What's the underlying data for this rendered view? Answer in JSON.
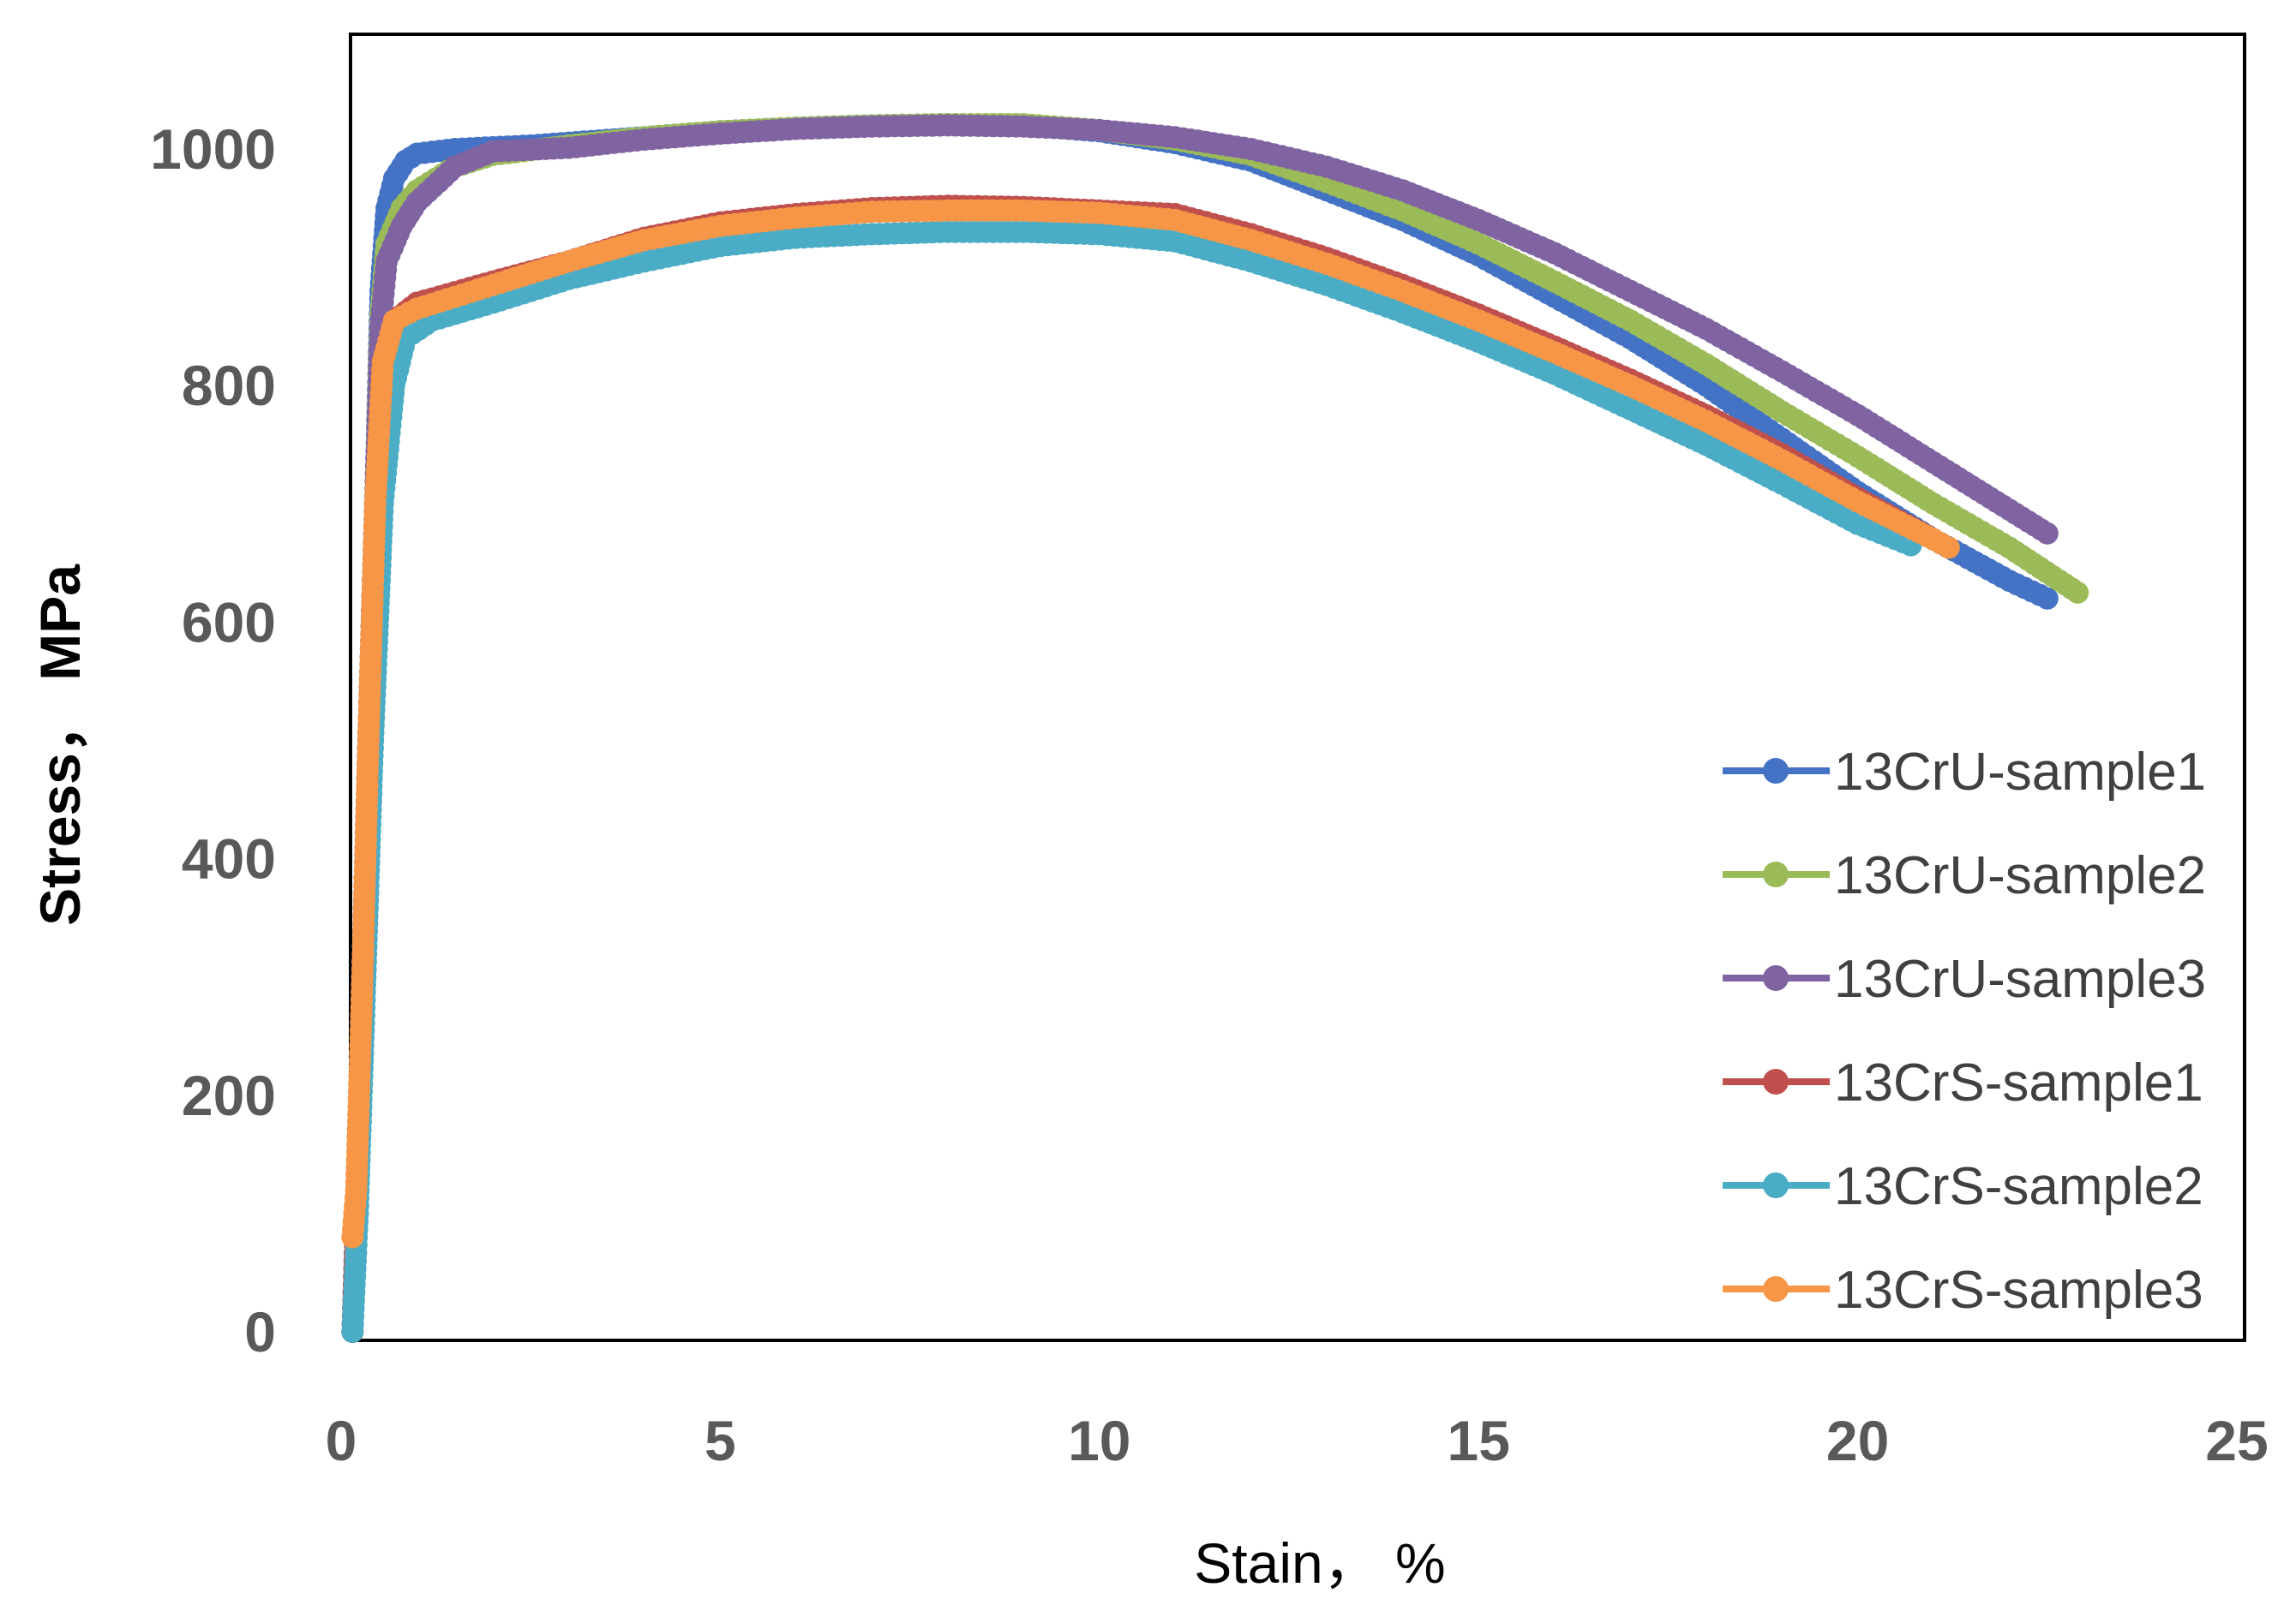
{
  "chart_data": {
    "type": "line",
    "title": "",
    "xlabel": "Stain， %",
    "ylabel": "Stress， MPa",
    "xlim": [
      0,
      25
    ],
    "ylim": [
      0,
      1100
    ],
    "xticks": [
      "0",
      "5",
      "10",
      "15",
      "20",
      "25"
    ],
    "xtick_values": [
      0,
      5,
      10,
      15,
      20,
      25
    ],
    "yticks": [
      "0",
      "200",
      "400",
      "600",
      "800",
      "1000"
    ],
    "ytick_values": [
      0,
      200,
      400,
      600,
      800,
      1000
    ],
    "grid": false,
    "legend_position": "bottom-right",
    "series": [
      {
        "name": "13CrU-sample1",
        "color": "#4472C4",
        "points": [
          [
            0.15,
            0
          ],
          [
            0.2,
            100
          ],
          [
            0.28,
            300
          ],
          [
            0.36,
            500
          ],
          [
            0.45,
            700
          ],
          [
            0.52,
            880
          ],
          [
            0.6,
            950
          ],
          [
            0.7,
            975
          ],
          [
            0.85,
            990
          ],
          [
            1.0,
            996
          ],
          [
            1.5,
            1000
          ],
          [
            2.5,
            1003
          ],
          [
            4,
            1010
          ],
          [
            5,
            1015
          ],
          [
            6,
            1018
          ],
          [
            7,
            1020
          ],
          [
            8,
            1021
          ],
          [
            9,
            1020
          ],
          [
            10,
            1015
          ],
          [
            11,
            1005
          ],
          [
            12,
            990
          ],
          [
            13,
            965
          ],
          [
            14,
            940
          ],
          [
            15,
            910
          ],
          [
            16,
            875
          ],
          [
            17,
            840
          ],
          [
            18,
            800
          ],
          [
            19,
            755
          ],
          [
            20,
            710
          ],
          [
            21,
            670
          ],
          [
            22,
            635
          ],
          [
            22.5,
            620
          ]
        ]
      },
      {
        "name": "13CrU-sample2",
        "color": "#9BBB59",
        "points": [
          [
            0.15,
            0
          ],
          [
            0.2,
            100
          ],
          [
            0.28,
            300
          ],
          [
            0.36,
            500
          ],
          [
            0.45,
            700
          ],
          [
            0.52,
            860
          ],
          [
            0.6,
            920
          ],
          [
            0.8,
            950
          ],
          [
            1.0,
            965
          ],
          [
            1.5,
            985
          ],
          [
            2,
            995
          ],
          [
            3,
            1003
          ],
          [
            4,
            1010
          ],
          [
            5,
            1015
          ],
          [
            6,
            1018
          ],
          [
            7,
            1020
          ],
          [
            8,
            1021
          ],
          [
            9,
            1021
          ],
          [
            10,
            1016
          ],
          [
            11,
            1008
          ],
          [
            12,
            995
          ],
          [
            13,
            972
          ],
          [
            14,
            948
          ],
          [
            15,
            920
          ],
          [
            16,
            888
          ],
          [
            17,
            855
          ],
          [
            18,
            818
          ],
          [
            19,
            778
          ],
          [
            20,
            740
          ],
          [
            21,
            700
          ],
          [
            22,
            663
          ],
          [
            22.9,
            625
          ]
        ]
      },
      {
        "name": "13CrU-sample3",
        "color": "#8064A2",
        "points": [
          [
            0.15,
            0
          ],
          [
            0.2,
            100
          ],
          [
            0.28,
            300
          ],
          [
            0.36,
            500
          ],
          [
            0.45,
            700
          ],
          [
            0.52,
            850
          ],
          [
            0.6,
            905
          ],
          [
            0.8,
            935
          ],
          [
            1.0,
            955
          ],
          [
            1.5,
            985
          ],
          [
            2,
            998
          ],
          [
            3,
            1001
          ],
          [
            4,
            1008
          ],
          [
            5,
            1013
          ],
          [
            6,
            1017
          ],
          [
            7,
            1019
          ],
          [
            8,
            1020
          ],
          [
            9,
            1019
          ],
          [
            10,
            1016
          ],
          [
            11,
            1010
          ],
          [
            12,
            1000
          ],
          [
            13,
            985
          ],
          [
            14,
            965
          ],
          [
            15,
            940
          ],
          [
            16,
            912
          ],
          [
            17,
            880
          ],
          [
            18,
            848
          ],
          [
            19,
            812
          ],
          [
            20,
            775
          ],
          [
            21,
            735
          ],
          [
            22,
            695
          ],
          [
            22.5,
            675
          ]
        ]
      },
      {
        "name": "13CrS-sample1",
        "color": "#C0504D",
        "points": [
          [
            0.15,
            0
          ],
          [
            0.2,
            100
          ],
          [
            0.28,
            300
          ],
          [
            0.36,
            500
          ],
          [
            0.45,
            700
          ],
          [
            0.55,
            820
          ],
          [
            0.7,
            855
          ],
          [
            1.0,
            870
          ],
          [
            2,
            888
          ],
          [
            3,
            905
          ],
          [
            4,
            925
          ],
          [
            5,
            938
          ],
          [
            6,
            945
          ],
          [
            7,
            950
          ],
          [
            8,
            952
          ],
          [
            9,
            951
          ],
          [
            10,
            948
          ],
          [
            11,
            945
          ],
          [
            12,
            928
          ],
          [
            13,
            908
          ],
          [
            14,
            885
          ],
          [
            15,
            860
          ],
          [
            16,
            833
          ],
          [
            17,
            805
          ],
          [
            18,
            775
          ],
          [
            19,
            742
          ],
          [
            20,
            705
          ],
          [
            21,
            670
          ]
        ]
      },
      {
        "name": "13CrS-sample2",
        "color": "#4BACC6",
        "points": [
          [
            0.15,
            0
          ],
          [
            0.22,
            100
          ],
          [
            0.32,
            300
          ],
          [
            0.42,
            500
          ],
          [
            0.55,
            700
          ],
          [
            0.7,
            800
          ],
          [
            0.85,
            840
          ],
          [
            1.2,
            855
          ],
          [
            2,
            870
          ],
          [
            3,
            890
          ],
          [
            4,
            905
          ],
          [
            5,
            918
          ],
          [
            6,
            925
          ],
          [
            7,
            928
          ],
          [
            8,
            930
          ],
          [
            9,
            930
          ],
          [
            10,
            928
          ],
          [
            11,
            922
          ],
          [
            12,
            905
          ],
          [
            13,
            885
          ],
          [
            14,
            862
          ],
          [
            15,
            837
          ],
          [
            16,
            810
          ],
          [
            17,
            780
          ],
          [
            18,
            750
          ],
          [
            19,
            717
          ],
          [
            20,
            683
          ],
          [
            20.7,
            665
          ]
        ]
      },
      {
        "name": "13CrS-sample3",
        "color": "#F79646",
        "points": [
          [
            0.15,
            80
          ],
          [
            0.2,
            120
          ],
          [
            0.28,
            300
          ],
          [
            0.36,
            500
          ],
          [
            0.45,
            700
          ],
          [
            0.55,
            820
          ],
          [
            0.7,
            855
          ],
          [
            1.0,
            865
          ],
          [
            2,
            885
          ],
          [
            3,
            905
          ],
          [
            4,
            923
          ],
          [
            5,
            935
          ],
          [
            6,
            942
          ],
          [
            7,
            947
          ],
          [
            8,
            948
          ],
          [
            9,
            948
          ],
          [
            10,
            946
          ],
          [
            11,
            940
          ],
          [
            12,
            923
          ],
          [
            13,
            903
          ],
          [
            14,
            880
          ],
          [
            15,
            855
          ],
          [
            16,
            828
          ],
          [
            17,
            800
          ],
          [
            18,
            770
          ],
          [
            19,
            737
          ],
          [
            20,
            702
          ],
          [
            21,
            670
          ],
          [
            21.2,
            663
          ]
        ]
      }
    ]
  }
}
